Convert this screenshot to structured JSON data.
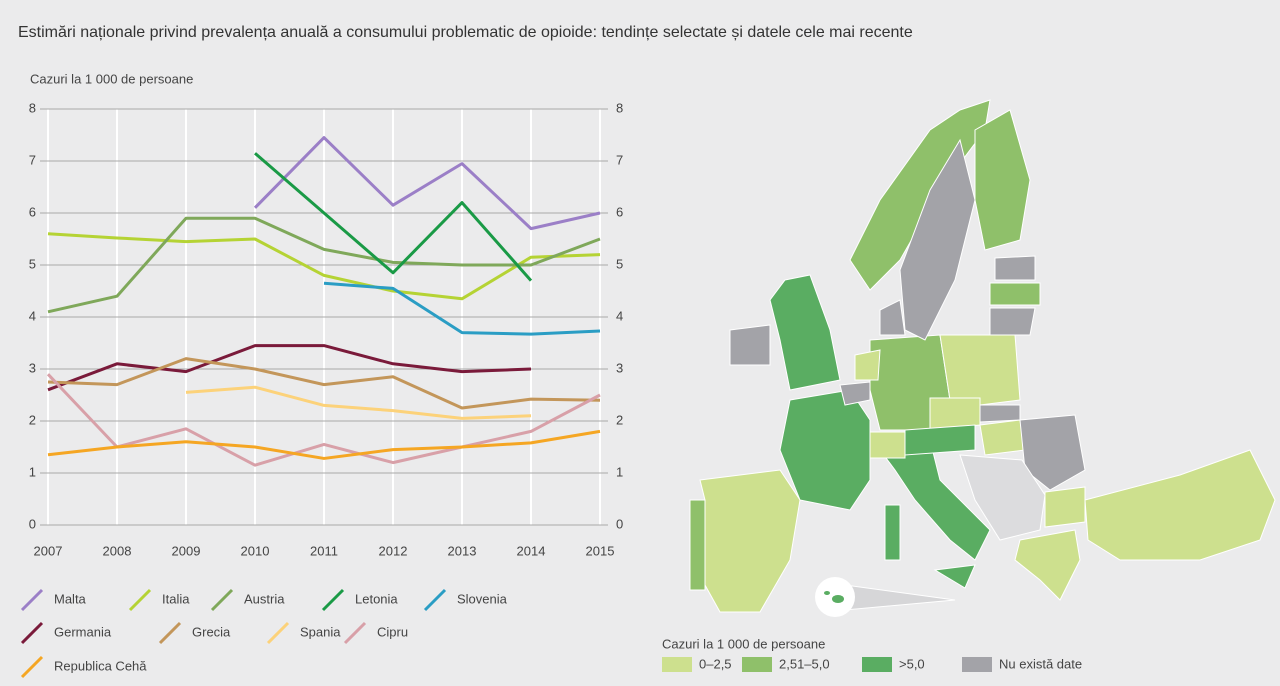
{
  "chart_data": {
    "type": "line",
    "title": "Estimări naționale privind prevalența anuală a consumului problematic de opioide: tendințe selectate și datele cele mai recente",
    "y_label": "Cazuri la 1 000 de persoane",
    "x": [
      2007,
      2008,
      2009,
      2010,
      2011,
      2012,
      2013,
      2014,
      2015
    ],
    "xlim": [
      2007,
      2015
    ],
    "xticks": [
      2007,
      2008,
      2009,
      2010,
      2011,
      2012,
      2013,
      2014,
      2015
    ],
    "ylim": [
      0,
      8
    ],
    "yticks": [
      0,
      1,
      2,
      3,
      4,
      5,
      6,
      7,
      8
    ],
    "y2lim": [
      0,
      8
    ],
    "y2ticks": [
      0,
      1,
      2,
      3,
      4,
      5,
      6,
      7,
      8
    ],
    "grid": true,
    "series": [
      {
        "name": "Malta",
        "color": "#9b7fc7",
        "values": [
          null,
          null,
          null,
          6.1,
          7.45,
          6.15,
          6.95,
          5.7,
          6.0
        ]
      },
      {
        "name": "Italia",
        "color": "#b5d334",
        "values": [
          5.6,
          5.52,
          5.45,
          5.5,
          4.8,
          4.5,
          4.35,
          5.15,
          5.2
        ]
      },
      {
        "name": "Austria",
        "color": "#7fa85a",
        "values": [
          4.1,
          4.4,
          5.9,
          5.9,
          5.3,
          5.05,
          5.0,
          5.0,
          5.5
        ]
      },
      {
        "name": "Letonia",
        "color": "#1a9a46",
        "values": [
          null,
          null,
          null,
          7.15,
          6.0,
          4.85,
          6.2,
          4.7,
          null
        ]
      },
      {
        "name": "Slovenia",
        "color": "#2a9dc4",
        "values": [
          null,
          null,
          null,
          null,
          4.65,
          4.55,
          3.7,
          3.67,
          3.73
        ]
      },
      {
        "name": "Germania",
        "color": "#7a1a3a",
        "values": [
          2.6,
          3.1,
          2.95,
          3.45,
          3.45,
          3.1,
          2.95,
          3.0,
          null
        ]
      },
      {
        "name": "Grecia",
        "color": "#c3965a",
        "values": [
          2.75,
          2.7,
          3.2,
          3.0,
          2.7,
          2.85,
          2.25,
          2.42,
          2.4
        ]
      },
      {
        "name": "Spania",
        "color": "#fcd27a",
        "values": [
          null,
          null,
          2.55,
          2.65,
          2.3,
          2.2,
          2.05,
          2.1,
          null
        ]
      },
      {
        "name": "Cipru",
        "color": "#d8a0a8",
        "values": [
          2.9,
          1.5,
          1.85,
          1.15,
          1.55,
          1.2,
          1.5,
          1.8,
          2.5
        ]
      },
      {
        "name": "Republica Cehă",
        "color": "#f5a623",
        "values": [
          1.35,
          1.5,
          1.6,
          1.5,
          1.28,
          1.45,
          1.5,
          1.58,
          1.8
        ]
      }
    ],
    "map_legend": {
      "title": "Cazuri la 1 000 de persoane",
      "items": [
        {
          "label": "0–2,5",
          "color": "#cde08e"
        },
        {
          "label": "2,51–5,0",
          "color": "#8fc06a"
        },
        {
          "label": ">5,0",
          "color": "#5aad62"
        },
        {
          "label": "Nu există date",
          "color": "#a3a3a8"
        }
      ]
    }
  }
}
